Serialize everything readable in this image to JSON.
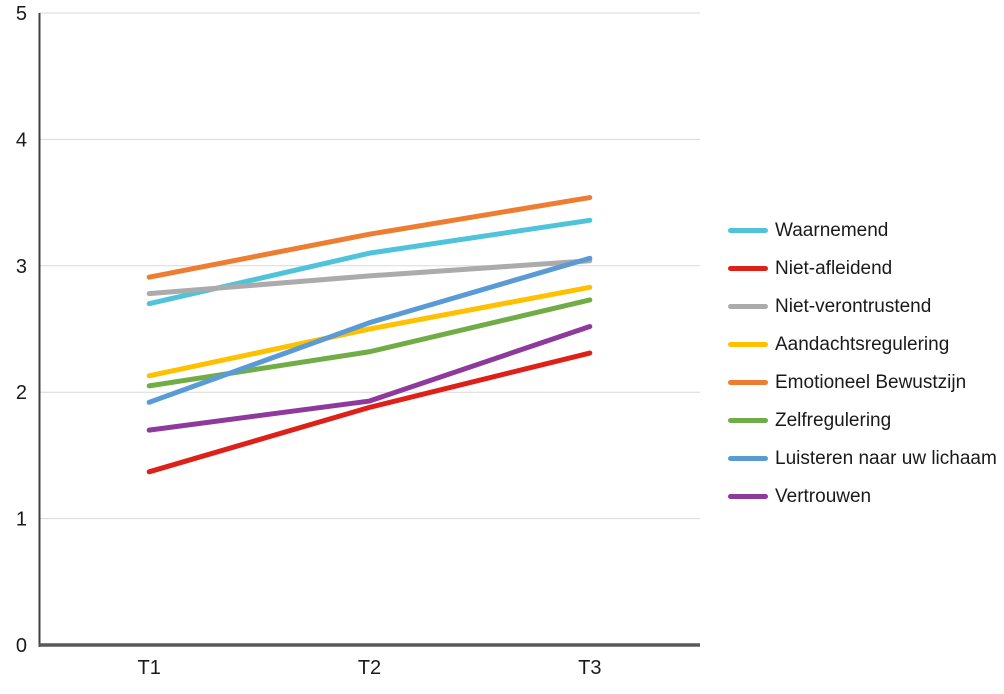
{
  "chart_data": {
    "type": "line",
    "title": "",
    "xlabel": "",
    "ylabel": "",
    "categories": [
      "T1",
      "T2",
      "T3"
    ],
    "ylim": [
      0,
      5
    ],
    "yticks": [
      "0",
      "1",
      "2",
      "3",
      "4",
      "5"
    ],
    "grid": true,
    "legend_position": "right",
    "series": [
      {
        "name": "Waarnemend",
        "color": "#4ec3d9",
        "values": [
          2.7,
          3.1,
          3.36
        ]
      },
      {
        "name": "Niet-afleidend",
        "color": "#de2118",
        "values": [
          1.37,
          1.88,
          2.31
        ]
      },
      {
        "name": "Niet-verontrustend",
        "color": "#ababab",
        "values": [
          2.78,
          2.92,
          3.04
        ]
      },
      {
        "name": "Aandachtsregulering",
        "color": "#ffc000",
        "values": [
          2.13,
          2.5,
          2.83
        ]
      },
      {
        "name": "Emotioneel Bewustzijn",
        "color": "#ed7d31",
        "values": [
          2.91,
          3.25,
          3.54
        ]
      },
      {
        "name": "Zelfregulering",
        "color": "#70ad47",
        "values": [
          2.05,
          2.32,
          2.73
        ]
      },
      {
        "name": "Luisteren naar uw lichaam",
        "color": "#5b9bd5",
        "values": [
          1.92,
          2.55,
          3.06
        ]
      },
      {
        "name": "Vertrouwen",
        "color": "#8e3a9c",
        "values": [
          1.7,
          1.93,
          2.52
        ]
      }
    ],
    "colors": {
      "gridline": "#d9d9d9",
      "y_axis": "#404040",
      "x_axis": "#595959",
      "tick_text": "#1a1a1a"
    }
  }
}
